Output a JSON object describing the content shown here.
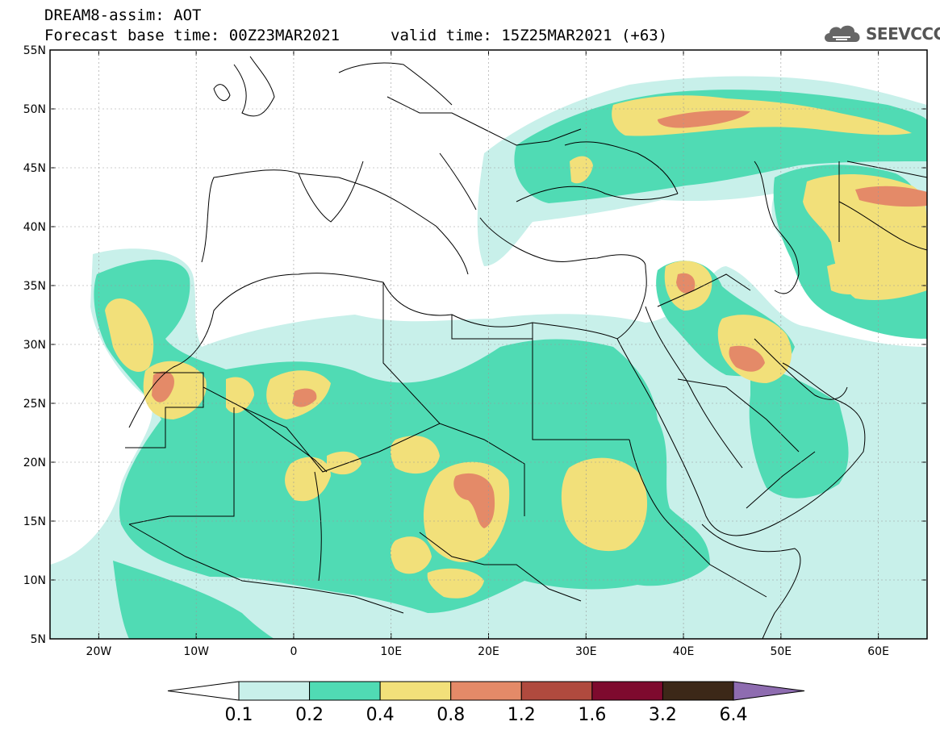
{
  "header": {
    "line1": "DREAM8-assim: AOT",
    "line2_base": "Forecast base time: 00Z23MAR2021",
    "line2_valid": "valid time: 15Z25MAR2021 (+63)",
    "logo_text": "SEEVCCC",
    "logo_icon": "cloud-icon"
  },
  "map": {
    "lat_labels": [
      "55N",
      "50N",
      "45N",
      "40N",
      "35N",
      "30N",
      "25N",
      "20N",
      "15N",
      "10N",
      "5N"
    ],
    "lon_labels": [
      "20W",
      "10W",
      "0",
      "10E",
      "20E",
      "30E",
      "40E",
      "50E",
      "60E"
    ],
    "lon_range": [
      -25,
      65
    ],
    "lat_range": [
      5,
      55
    ]
  },
  "legend": {
    "labels": [
      "0.1",
      "0.2",
      "0.4",
      "0.8",
      "1.2",
      "1.6",
      "3.2",
      "6.4"
    ],
    "colors": [
      "#ffffff",
      "#c8f0ea",
      "#50dbb4",
      "#f2e07a",
      "#e48a68",
      "#b04a3e",
      "#7e0a2e",
      "#3c2818",
      "#8e6cb0"
    ]
  },
  "colors": {
    "c1": "#c8f0ea",
    "c2": "#50dbb4",
    "c3": "#f2e07a",
    "c4": "#e48a68"
  }
}
